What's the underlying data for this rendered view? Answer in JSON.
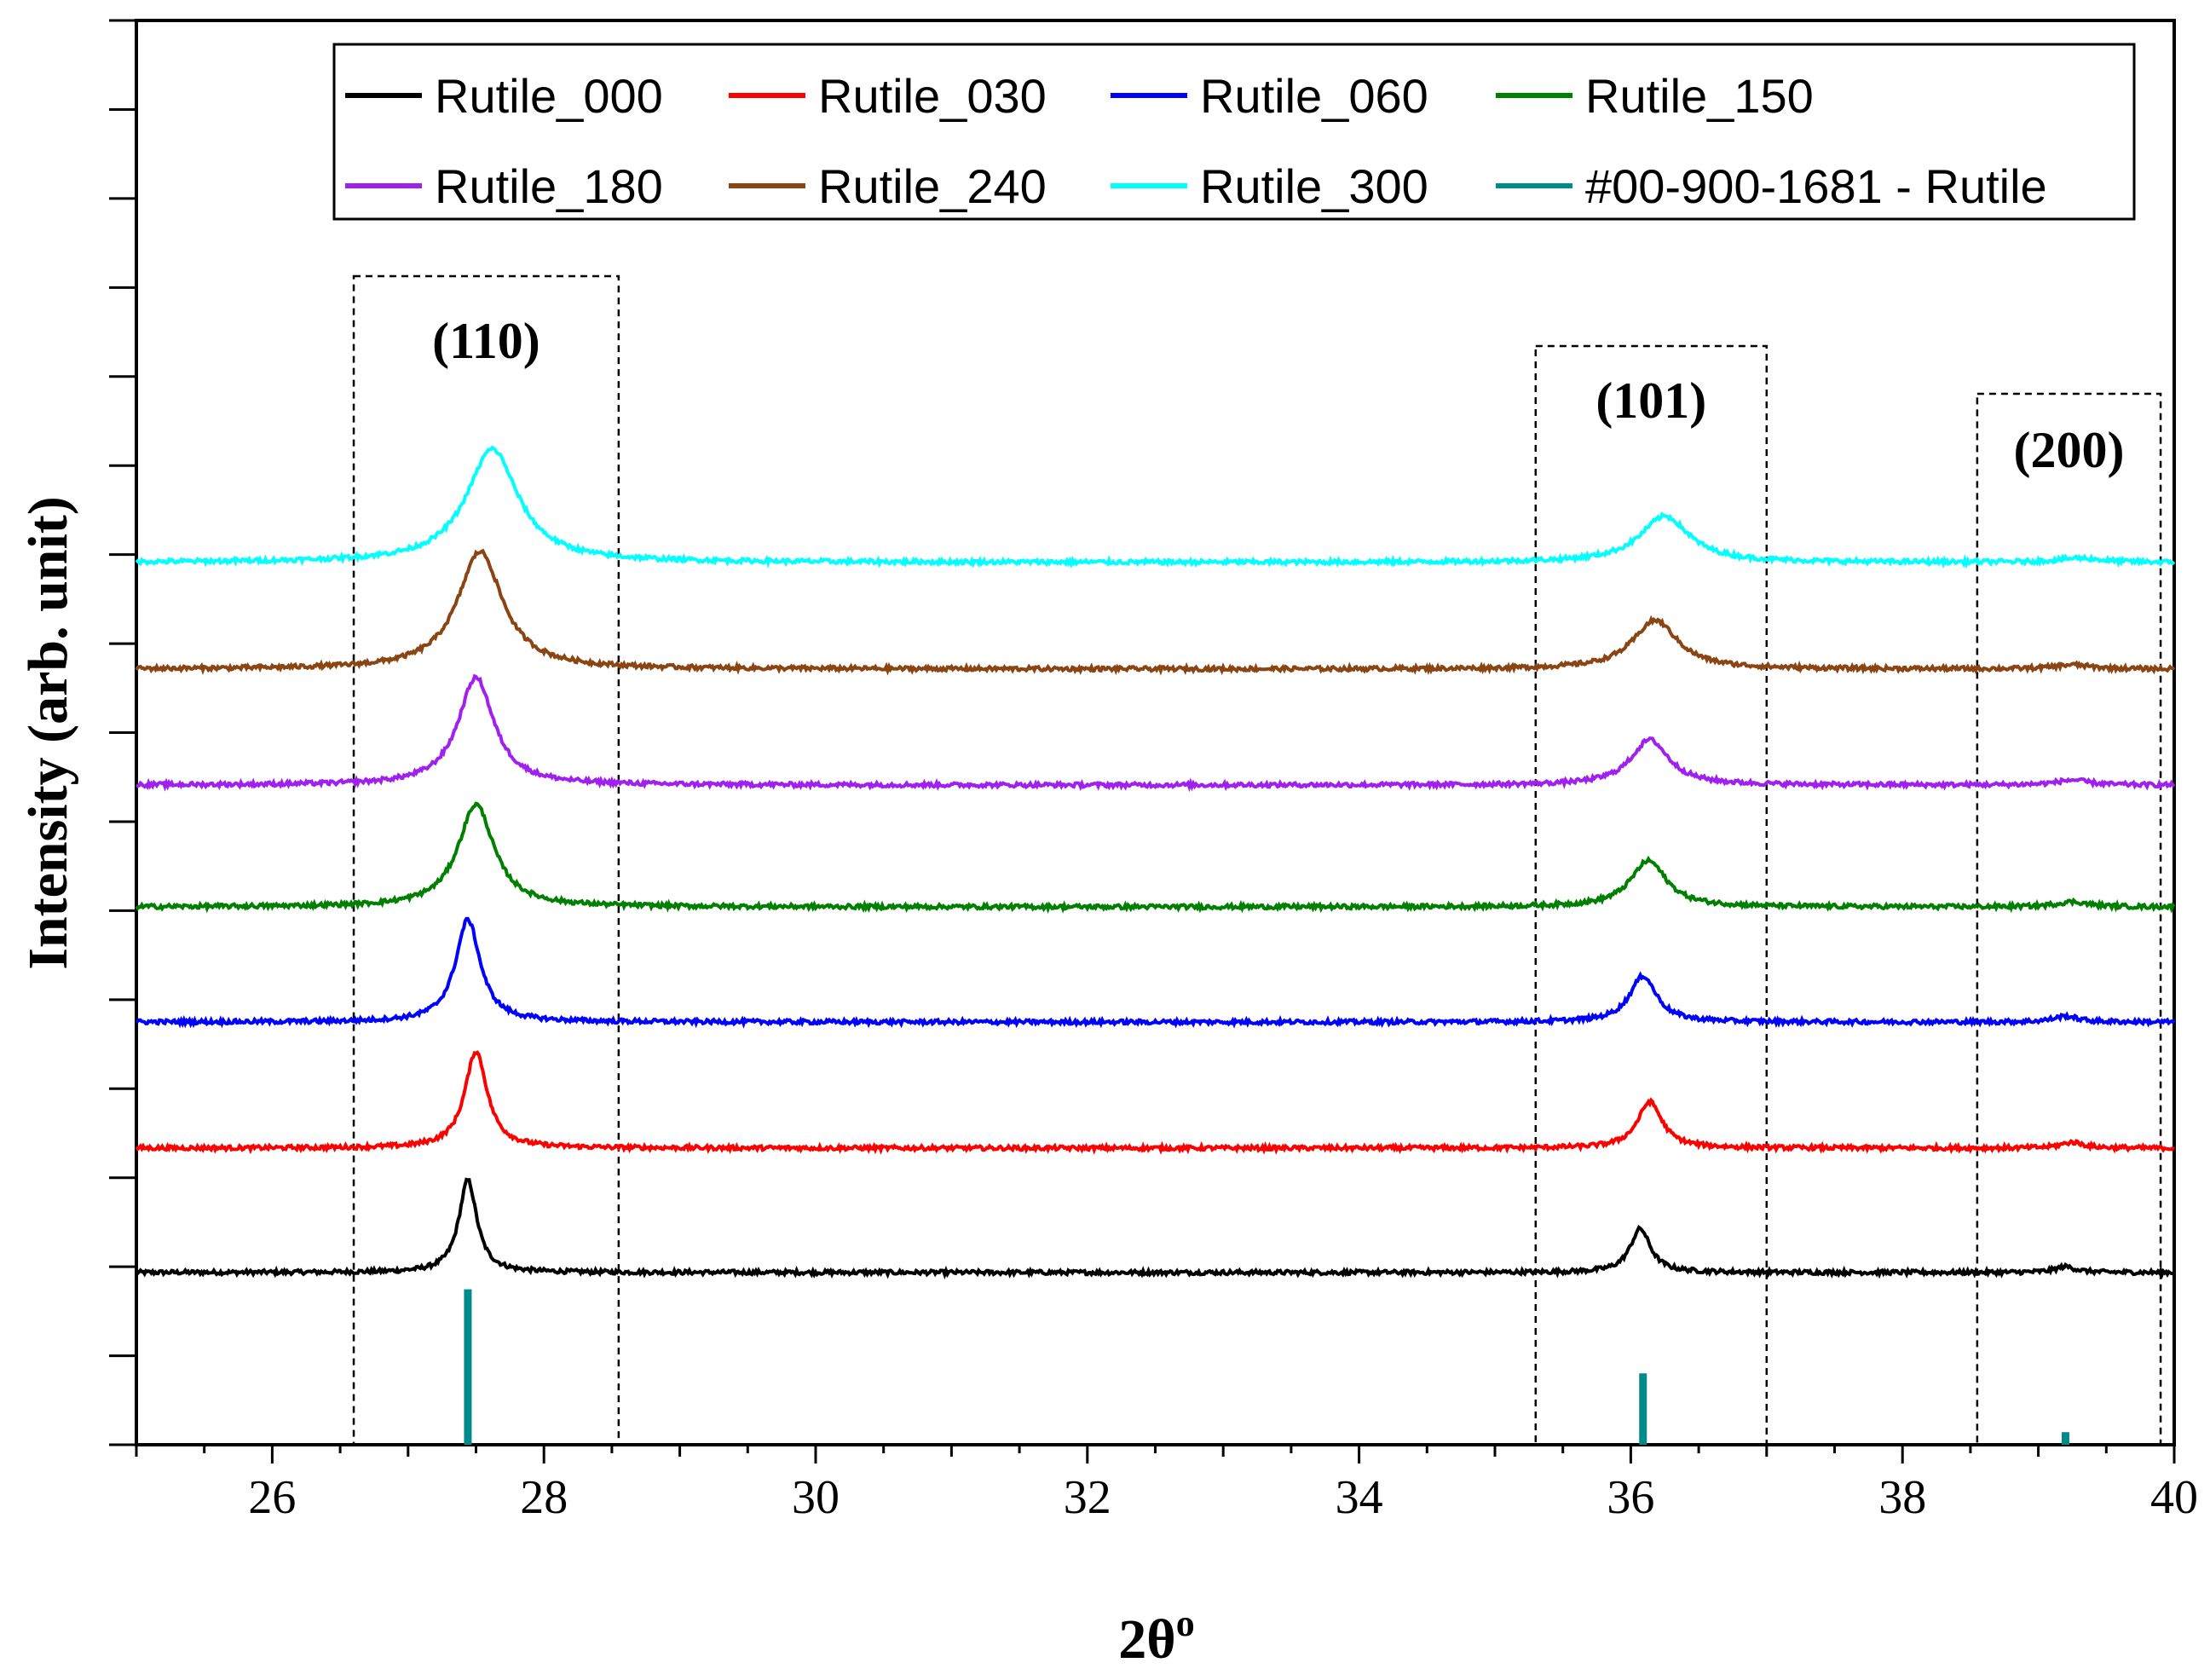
{
  "chart_data": {
    "type": "line",
    "xlabel": "2θ",
    "xlabel_sup": "o",
    "ylabel": "Intensity (arb. unit)",
    "xlim": [
      25,
      40
    ],
    "x_ticks": [
      26,
      28,
      30,
      32,
      34,
      36,
      38,
      40
    ],
    "y_ticks_shown": false,
    "legend_position": "top-right",
    "peaks": [
      {
        "label": "(110)",
        "range": [
          26.6,
          28.55
        ]
      },
      {
        "label": "(101)",
        "range": [
          35.3,
          37.0
        ]
      },
      {
        "label": "(200)",
        "range": [
          38.55,
          39.9
        ]
      }
    ],
    "series": [
      {
        "name": "Rutile_000",
        "color": "#000000",
        "baseline": 0.0,
        "peaks": [
          [
            27.44,
            1.1,
            0.08
          ],
          [
            36.07,
            0.52,
            0.09
          ],
          [
            39.2,
            0.07,
            0.09
          ]
        ]
      },
      {
        "name": "Rutile_030",
        "color": "#ff0000",
        "baseline": 1.48,
        "peaks": [
          [
            27.5,
            1.15,
            0.1
          ],
          [
            36.14,
            0.55,
            0.11
          ],
          [
            39.25,
            0.07,
            0.1
          ]
        ]
      },
      {
        "name": "Rutile_060",
        "color": "#0000ff",
        "baseline": 2.98,
        "peaks": [
          [
            27.44,
            1.22,
            0.11
          ],
          [
            36.09,
            0.55,
            0.12
          ],
          [
            39.2,
            0.07,
            0.11
          ]
        ]
      },
      {
        "name": "Rutile_150",
        "color": "#008000",
        "baseline": 4.35,
        "peaks": [
          [
            27.5,
            1.22,
            0.16
          ],
          [
            36.13,
            0.55,
            0.16
          ],
          [
            39.25,
            0.06,
            0.14
          ]
        ]
      },
      {
        "name": "Rutile_180",
        "color": "#a020f0",
        "baseline": 5.8,
        "peaks": [
          [
            27.5,
            1.28,
            0.16
          ],
          [
            36.14,
            0.54,
            0.17
          ],
          [
            39.25,
            0.06,
            0.14
          ]
        ]
      },
      {
        "name": "Rutile_240",
        "color": "#8b4513",
        "baseline": 7.18,
        "peaks": [
          [
            27.53,
            1.4,
            0.2
          ],
          [
            36.18,
            0.58,
            0.2
          ],
          [
            39.25,
            0.05,
            0.16
          ]
        ]
      },
      {
        "name": "Rutile_300",
        "color": "#00ffff",
        "baseline": 8.45,
        "peaks": [
          [
            27.62,
            1.35,
            0.23
          ],
          [
            36.25,
            0.55,
            0.22
          ],
          [
            39.3,
            0.05,
            0.18
          ]
        ]
      }
    ],
    "reference": {
      "name": "#00-900-1681 - Rutile",
      "color": "#008b8b",
      "sticks": [
        [
          27.44,
          1.85
        ],
        [
          36.09,
          0.85
        ],
        [
          39.2,
          0.15
        ]
      ]
    },
    "ylim": [
      -2.05,
      14.9
    ]
  }
}
